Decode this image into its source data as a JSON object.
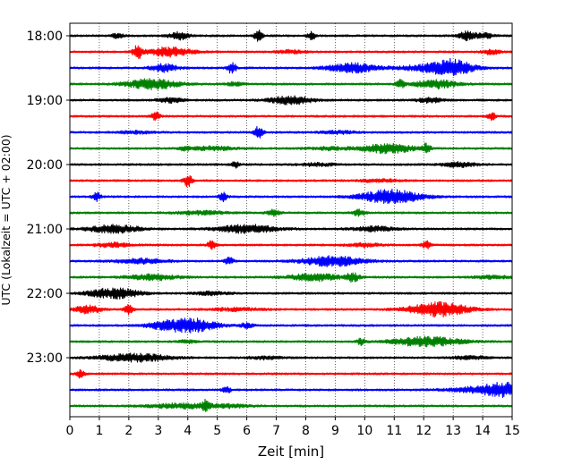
{
  "chart_data": {
    "type": "line",
    "xlabel": "Zeit  [min]",
    "ylabel": "UTC (Lokalzeit = UTC + 02:00)",
    "xlim": [
      0,
      15
    ],
    "x_ticks": [
      0,
      1,
      2,
      3,
      4,
      5,
      6,
      7,
      8,
      9,
      10,
      11,
      12,
      13,
      14,
      15
    ],
    "grid": "vertical-dotted",
    "y_ticks": [
      {
        "label": "18:00",
        "trace": 0
      },
      {
        "label": "19:00",
        "trace": 4
      },
      {
        "label": "20:00",
        "trace": 8
      },
      {
        "label": "21:00",
        "trace": 12
      },
      {
        "label": "22:00",
        "trace": 16
      },
      {
        "label": "23:00",
        "trace": 20
      }
    ],
    "colors": [
      "#000000",
      "#ff0000",
      "#0000ff",
      "#008000"
    ],
    "traces": [
      {
        "time": "18:00",
        "color": "#000000",
        "bursts": [
          [
            1.6,
            0.8,
            0.15
          ],
          [
            3.7,
            1.2,
            0.25
          ],
          [
            6.4,
            1.8,
            0.1
          ],
          [
            8.2,
            1.4,
            0.1
          ],
          [
            13.5,
            1.6,
            0.2
          ],
          [
            14.1,
            0.8,
            0.2
          ]
        ]
      },
      {
        "time": "18:15",
        "color": "#ff0000",
        "bursts": [
          [
            2.3,
            2.2,
            0.12
          ],
          [
            3.4,
            1.6,
            0.5
          ],
          [
            7.5,
            0.6,
            0.3
          ],
          [
            14.3,
            0.8,
            0.2
          ]
        ]
      },
      {
        "time": "18:30",
        "color": "#0000ff",
        "bursts": [
          [
            3.2,
            1.4,
            0.3
          ],
          [
            5.5,
            2.0,
            0.1
          ],
          [
            9.6,
            1.6,
            0.6
          ],
          [
            12.5,
            1.4,
            0.8
          ],
          [
            13.0,
            2.0,
            0.4
          ]
        ]
      },
      {
        "time": "18:45",
        "color": "#008000",
        "bursts": [
          [
            2.8,
            1.8,
            0.6
          ],
          [
            5.6,
            0.6,
            0.2
          ],
          [
            11.2,
            1.4,
            0.1
          ],
          [
            12.4,
            1.4,
            0.5
          ]
        ]
      },
      {
        "time": "19:00",
        "color": "#000000",
        "bursts": [
          [
            3.4,
            0.8,
            0.3
          ],
          [
            7.5,
            1.4,
            0.5
          ],
          [
            12.2,
            0.8,
            0.3
          ]
        ]
      },
      {
        "time": "19:15",
        "color": "#ff0000",
        "bursts": [
          [
            2.9,
            1.6,
            0.1
          ],
          [
            14.3,
            1.2,
            0.1
          ]
        ]
      },
      {
        "time": "19:30",
        "color": "#0000ff",
        "bursts": [
          [
            2.2,
            0.5,
            0.4
          ],
          [
            6.4,
            2.0,
            0.1
          ],
          [
            9.1,
            0.5,
            0.4
          ]
        ]
      },
      {
        "time": "19:45",
        "color": "#008000",
        "bursts": [
          [
            3.9,
            0.8,
            0.1
          ],
          [
            4.8,
            0.6,
            0.6
          ],
          [
            8.8,
            0.5,
            0.5
          ],
          [
            10.8,
            1.6,
            0.6
          ],
          [
            12.1,
            1.6,
            0.1
          ]
        ]
      },
      {
        "time": "20:00",
        "color": "#000000",
        "bursts": [
          [
            5.6,
            1.0,
            0.1
          ],
          [
            8.4,
            0.5,
            0.4
          ],
          [
            13.2,
            0.8,
            0.4
          ]
        ]
      },
      {
        "time": "20:15",
        "color": "#ff0000",
        "bursts": [
          [
            4.0,
            2.2,
            0.1
          ],
          [
            10.5,
            0.5,
            0.5
          ]
        ]
      },
      {
        "time": "20:30",
        "color": "#0000ff",
        "bursts": [
          [
            0.9,
            1.4,
            0.1
          ],
          [
            5.2,
            1.4,
            0.1
          ],
          [
            10.9,
            2.4,
            0.7
          ]
        ]
      },
      {
        "time": "20:45",
        "color": "#008000",
        "bursts": [
          [
            4.5,
            0.6,
            0.6
          ],
          [
            6.9,
            1.0,
            0.15
          ],
          [
            9.8,
            1.0,
            0.15
          ]
        ]
      },
      {
        "time": "21:00",
        "color": "#000000",
        "bursts": [
          [
            1.5,
            1.4,
            0.6
          ],
          [
            6.0,
            1.4,
            0.7
          ],
          [
            10.3,
            0.8,
            0.5
          ]
        ]
      },
      {
        "time": "21:15",
        "color": "#ff0000",
        "bursts": [
          [
            1.5,
            0.8,
            0.4
          ],
          [
            4.8,
            1.4,
            0.1
          ],
          [
            10.0,
            0.6,
            0.4
          ],
          [
            12.1,
            1.4,
            0.1
          ]
        ]
      },
      {
        "time": "21:30",
        "color": "#0000ff",
        "bursts": [
          [
            2.4,
            0.8,
            0.6
          ],
          [
            5.4,
            1.4,
            0.1
          ],
          [
            8.9,
            1.8,
            0.7
          ]
        ]
      },
      {
        "time": "21:45",
        "color": "#008000",
        "bursts": [
          [
            2.8,
            1.0,
            0.6
          ],
          [
            8.3,
            1.2,
            0.6
          ],
          [
            9.6,
            1.6,
            0.15
          ],
          [
            14.3,
            0.6,
            0.4
          ]
        ]
      },
      {
        "time": "22:00",
        "color": "#000000",
        "bursts": [
          [
            1.5,
            1.8,
            0.6
          ],
          [
            4.8,
            0.6,
            0.4
          ]
        ]
      },
      {
        "time": "22:15",
        "color": "#ff0000",
        "bursts": [
          [
            0.6,
            1.4,
            0.3
          ],
          [
            2.0,
            1.6,
            0.1
          ],
          [
            5.6,
            0.5,
            0.6
          ],
          [
            12.5,
            2.4,
            0.7
          ]
        ]
      },
      {
        "time": "22:30",
        "color": "#0000ff",
        "bursts": [
          [
            3.1,
            0.8,
            0.4
          ],
          [
            4.1,
            2.4,
            0.6
          ],
          [
            6.0,
            0.8,
            0.15
          ]
        ]
      },
      {
        "time": "22:45",
        "color": "#008000",
        "bursts": [
          [
            4.0,
            0.5,
            0.2
          ],
          [
            9.9,
            1.2,
            0.1
          ],
          [
            12.1,
            1.6,
            0.8
          ]
        ]
      },
      {
        "time": "23:00",
        "color": "#000000",
        "bursts": [
          [
            2.2,
            1.4,
            0.8
          ],
          [
            6.6,
            0.5,
            0.4
          ],
          [
            13.6,
            0.6,
            0.4
          ]
        ]
      },
      {
        "time": "23:15",
        "color": "#ff0000",
        "bursts": [
          [
            0.35,
            1.4,
            0.1
          ]
        ]
      },
      {
        "time": "23:30",
        "color": "#0000ff",
        "bursts": [
          [
            5.3,
            1.4,
            0.1
          ],
          [
            14.3,
            1.2,
            0.9
          ],
          [
            14.8,
            1.4,
            0.5
          ]
        ]
      },
      {
        "time": "23:45",
        "color": "#008000",
        "bursts": [
          [
            3.8,
            0.8,
            0.8
          ],
          [
            4.6,
            1.6,
            0.1
          ],
          [
            5.5,
            0.5,
            0.4
          ]
        ]
      }
    ]
  }
}
